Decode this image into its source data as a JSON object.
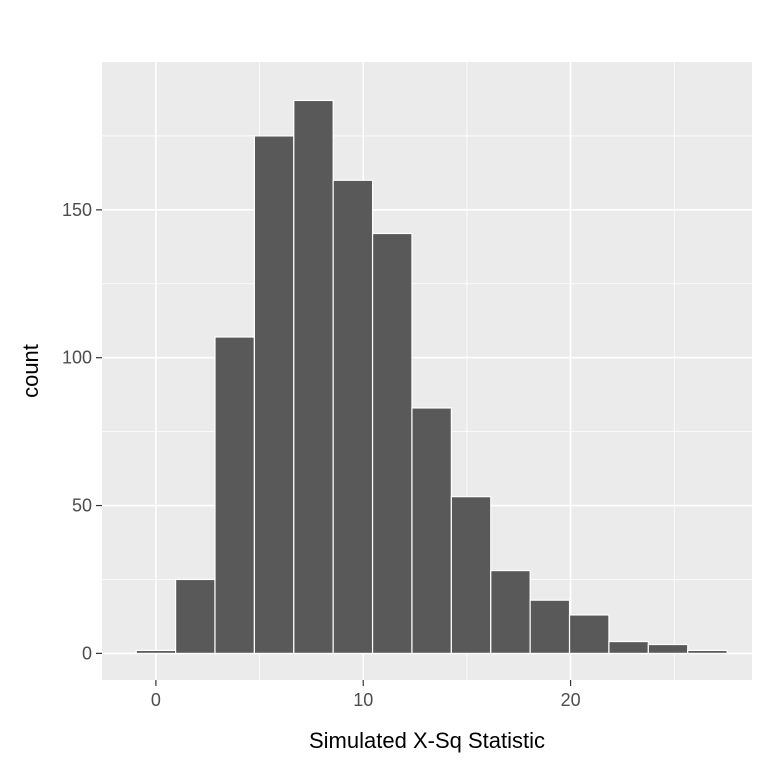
{
  "chart_data": {
    "type": "bar",
    "xlabel": "Simulated X-Sq Statistic",
    "ylabel": "count",
    "xlim": [
      -2.6,
      28.75
    ],
    "ylim": [
      -9,
      200
    ],
    "x_ticks": [
      0,
      10,
      20
    ],
    "y_ticks": [
      0,
      50,
      100,
      150
    ],
    "bin_width": 1.9,
    "bins": [
      {
        "x0": -0.95,
        "x1": 0.95,
        "count": 1
      },
      {
        "x0": 0.95,
        "x1": 2.85,
        "count": 25
      },
      {
        "x0": 2.85,
        "x1": 4.75,
        "count": 107
      },
      {
        "x0": 4.75,
        "x1": 6.65,
        "count": 175
      },
      {
        "x0": 6.65,
        "x1": 8.55,
        "count": 187
      },
      {
        "x0": 8.55,
        "x1": 10.45,
        "count": 160
      },
      {
        "x0": 10.45,
        "x1": 12.35,
        "count": 142
      },
      {
        "x0": 12.35,
        "x1": 14.25,
        "count": 83
      },
      {
        "x0": 14.25,
        "x1": 16.15,
        "count": 53
      },
      {
        "x0": 16.15,
        "x1": 18.05,
        "count": 28
      },
      {
        "x0": 18.05,
        "x1": 19.95,
        "count": 18
      },
      {
        "x0": 19.95,
        "x1": 21.85,
        "count": 13
      },
      {
        "x0": 21.85,
        "x1": 23.75,
        "count": 4
      },
      {
        "x0": 23.75,
        "x1": 25.65,
        "count": 3
      },
      {
        "x0": 25.65,
        "x1": 27.55,
        "count": 1
      }
    ],
    "grid": true,
    "panel_color": "#ebebeb",
    "bar_fill": "#595959",
    "bar_outline": "#ffffff"
  }
}
